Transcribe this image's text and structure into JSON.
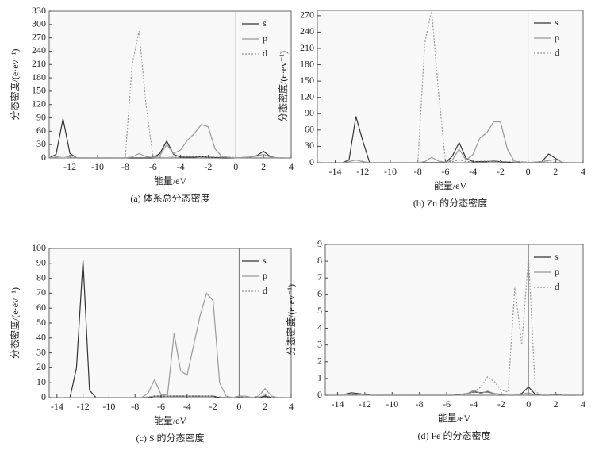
{
  "chart_data": [
    {
      "type": "line",
      "title": "(a) 体系总分态密度",
      "xlabel": "能量/eV",
      "ylabel": "分态密度/(e·ev⁻¹)",
      "x": [
        -13.5,
        -13,
        -12.5,
        -12,
        -11.5,
        -11,
        -10.5,
        -10,
        -9.5,
        -9,
        -8.5,
        -8,
        -7.5,
        -7,
        -6.5,
        -6,
        -5.5,
        -5,
        -4.5,
        -4,
        -3.5,
        -3,
        -2.5,
        -2,
        -1.5,
        -1,
        -0.5,
        0,
        0.5,
        1,
        1.5,
        2,
        2.5,
        3,
        3.5
      ],
      "series": [
        {
          "name": "s",
          "color": "#333333",
          "style": "solid",
          "values": [
            0,
            8,
            88,
            10,
            0,
            0,
            0,
            0,
            0,
            0,
            0,
            0,
            0,
            0,
            0,
            0,
            10,
            38,
            8,
            2,
            2,
            2,
            3,
            2,
            1,
            0,
            0,
            0,
            1,
            2,
            5,
            15,
            3,
            0,
            0
          ]
        },
        {
          "name": "p",
          "color": "#999999",
          "style": "solid",
          "values": [
            0,
            2,
            5,
            2,
            0,
            0,
            0,
            0,
            0,
            0,
            0,
            0,
            2,
            10,
            3,
            1,
            5,
            30,
            10,
            18,
            40,
            55,
            75,
            70,
            20,
            3,
            1,
            0,
            1,
            2,
            4,
            8,
            2,
            0,
            0
          ]
        },
        {
          "name": "d",
          "color": "#999999",
          "style": "dotted",
          "values": [
            0,
            0,
            0,
            0,
            0,
            0,
            0,
            0,
            0,
            0,
            0,
            0,
            210,
            285,
            120,
            3,
            2,
            5,
            2,
            2,
            3,
            3,
            2,
            2,
            2,
            3,
            2,
            1,
            1,
            1,
            1,
            1,
            0,
            0,
            0
          ]
        }
      ],
      "xlim": [
        -13.5,
        4
      ],
      "xticks": [
        -12,
        -10,
        -8,
        -6,
        -4,
        -2,
        0,
        2,
        4
      ],
      "ylim": [
        0,
        330
      ],
      "yticks": [
        0,
        30,
        60,
        90,
        120,
        150,
        180,
        210,
        240,
        270,
        300,
        330
      ],
      "vline": 0,
      "legend": "upper right"
    },
    {
      "type": "line",
      "title": "(b) Zn 的分态密度",
      "xlabel": "能量/eV",
      "ylabel": "分态密度/(e·ev⁻¹)",
      "x": [
        -13.5,
        -13,
        -12.5,
        -12,
        -11.5,
        -11,
        -10.5,
        -10,
        -9.5,
        -9,
        -8.5,
        -8,
        -7.5,
        -7,
        -6.5,
        -6,
        -5.5,
        -5,
        -4.5,
        -4,
        -3.5,
        -3,
        -2.5,
        -2,
        -1.5,
        -1,
        -0.5,
        0,
        0.5,
        1,
        1.5,
        2,
        2.5,
        3,
        3.5
      ],
      "series": [
        {
          "name": "s",
          "color": "#333333",
          "style": "solid",
          "values": [
            0,
            5,
            85,
            40,
            0,
            0,
            0,
            0,
            0,
            0,
            0,
            0,
            0,
            0,
            0,
            0,
            12,
            37,
            8,
            2,
            2,
            2,
            3,
            2,
            1,
            0,
            0,
            0,
            1,
            2,
            16,
            8,
            0,
            0,
            0
          ]
        },
        {
          "name": "p",
          "color": "#999999",
          "style": "solid",
          "values": [
            0,
            2,
            5,
            2,
            0,
            0,
            0,
            0,
            0,
            0,
            0,
            0,
            2,
            10,
            3,
            1,
            5,
            25,
            5,
            15,
            45,
            55,
            75,
            75,
            25,
            3,
            1,
            0,
            1,
            2,
            4,
            6,
            1,
            0,
            0
          ]
        },
        {
          "name": "d",
          "color": "#999999",
          "style": "dotted",
          "values": [
            0,
            0,
            0,
            0,
            0,
            0,
            0,
            0,
            0,
            0,
            0,
            0,
            220,
            280,
            130,
            3,
            2,
            5,
            2,
            2,
            3,
            3,
            2,
            2,
            2,
            3,
            2,
            1,
            1,
            1,
            1,
            1,
            0,
            0,
            0
          ]
        }
      ],
      "xlim": [
        -15.3,
        4
      ],
      "xticks": [
        -14,
        -12,
        -10,
        -8,
        -6,
        -4,
        -2,
        0,
        2,
        4
      ],
      "ylim": [
        0,
        280
      ],
      "yticks": [
        0,
        30,
        60,
        90,
        120,
        150,
        180,
        210,
        240,
        270
      ],
      "vline": 0,
      "legend": "upper right"
    },
    {
      "type": "line",
      "title": "(c) S 的分态密度",
      "xlabel": "能量/eV",
      "ylabel": "分态密度/(e·ev⁻¹)",
      "x": [
        -13.5,
        -13,
        -12.5,
        -12,
        -11.5,
        -11,
        -10.5,
        -10,
        -9.5,
        -9,
        -8.5,
        -8,
        -7.5,
        -7,
        -6.5,
        -6,
        -5.5,
        -5,
        -4.5,
        -4,
        -3.5,
        -3,
        -2.5,
        -2,
        -1.5,
        -1,
        -0.5,
        0,
        0.5,
        1,
        1.5,
        2,
        2.5,
        3,
        3.5
      ],
      "series": [
        {
          "name": "s",
          "color": "#333333",
          "style": "solid",
          "values": [
            0,
            0,
            20,
            92,
            5,
            0,
            0,
            0,
            0,
            0,
            0,
            0,
            0,
            0,
            1,
            1,
            1,
            1,
            1,
            1,
            1,
            1,
            1,
            1,
            0,
            0,
            0,
            0,
            0,
            0,
            0,
            1,
            0,
            0,
            0
          ]
        },
        {
          "name": "p",
          "color": "#999999",
          "style": "solid",
          "values": [
            0,
            0,
            0,
            0,
            0,
            0,
            0,
            0,
            0,
            0,
            0,
            0,
            0,
            3,
            12,
            2,
            2,
            43,
            18,
            15,
            35,
            55,
            70,
            65,
            10,
            1,
            0,
            1,
            1,
            0,
            1,
            6,
            1,
            0,
            0
          ]
        },
        {
          "name": "d",
          "color": "#999999",
          "style": "dotted",
          "values": [
            0,
            0,
            0,
            0,
            0,
            0,
            0,
            0,
            0,
            0,
            0,
            0,
            0,
            0.5,
            1,
            1,
            1,
            1,
            1,
            1,
            1,
            1,
            1,
            1,
            0.5,
            0,
            0,
            1,
            0,
            0,
            0,
            2,
            0,
            0,
            0
          ]
        }
      ],
      "xlim": [
        -14.6,
        4
      ],
      "xticks": [
        -14,
        -12,
        -10,
        -8,
        -6,
        -4,
        -2,
        0,
        2,
        4
      ],
      "ylim": [
        0,
        100
      ],
      "yticks": [
        0,
        10,
        20,
        30,
        40,
        50,
        60,
        70,
        80,
        90,
        100
      ],
      "vline": 0,
      "legend": "upper right"
    },
    {
      "type": "line",
      "title": "(d) Fe 的分态密度",
      "xlabel": "能量/eV",
      "ylabel": "分态密度/(e·ev⁻¹)",
      "x": [
        -13.5,
        -13,
        -12.5,
        -12,
        -11.5,
        -11,
        -10.5,
        -10,
        -9.5,
        -9,
        -8.5,
        -8,
        -7.5,
        -7,
        -6.5,
        -6,
        -5.5,
        -5,
        -4.5,
        -4,
        -3.5,
        -3,
        -2.5,
        -2,
        -1.5,
        -1,
        -0.5,
        0,
        0.5,
        1,
        1.5,
        2,
        2.5,
        3,
        3.5
      ],
      "series": [
        {
          "name": "s",
          "color": "#333333",
          "style": "solid",
          "values": [
            0.05,
            0.15,
            0.1,
            0.05,
            0,
            0,
            0,
            0,
            0,
            0,
            0,
            0,
            0,
            0,
            0,
            0,
            0,
            0.05,
            0.1,
            0.2,
            0.15,
            0.2,
            0.1,
            0.05,
            0,
            0,
            0.1,
            0.5,
            0.05,
            0,
            0,
            0.05,
            0,
            0,
            0
          ]
        },
        {
          "name": "p",
          "color": "#999999",
          "style": "solid",
          "values": [
            0,
            0.05,
            0.05,
            0,
            0,
            0,
            0,
            0,
            0,
            0,
            0,
            0,
            0,
            0,
            0,
            0,
            0,
            0,
            0.1,
            0.3,
            0.1,
            0.25,
            0.1,
            0.05,
            0,
            0,
            0.05,
            0.15,
            0,
            0,
            0,
            0,
            0,
            0,
            0
          ]
        },
        {
          "name": "d",
          "color": "#999999",
          "style": "dotted",
          "values": [
            0,
            0,
            0,
            0,
            0,
            0,
            0,
            0,
            0,
            0,
            0,
            0,
            0,
            0,
            0,
            0,
            0,
            0,
            0.1,
            0.2,
            0.5,
            1.1,
            0.8,
            0.3,
            0.2,
            6.5,
            3,
            8.3,
            0.2,
            0,
            0,
            0.1,
            0,
            0,
            0
          ]
        }
      ],
      "xlim": [
        -14.9,
        4
      ],
      "xticks": [
        -14,
        -12,
        -10,
        -8,
        -6,
        -4,
        -2,
        0,
        2,
        4
      ],
      "ylim": [
        0,
        9
      ],
      "yticks": [
        0,
        1,
        2,
        3,
        4,
        5,
        6,
        7,
        8,
        9
      ],
      "vline": 0,
      "legend": "upper right"
    }
  ]
}
